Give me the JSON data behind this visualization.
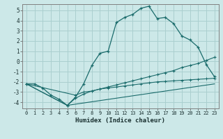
{
  "xlabel": "Humidex (Indice chaleur)",
  "bg_color": "#cce8e8",
  "grid_color": "#aacfcf",
  "line_color": "#1a6b6b",
  "xlim": [
    -0.5,
    23.5
  ],
  "ylim": [
    -4.6,
    5.6
  ],
  "xticks": [
    0,
    1,
    2,
    3,
    4,
    5,
    6,
    7,
    8,
    9,
    10,
    11,
    12,
    13,
    14,
    15,
    16,
    17,
    18,
    19,
    20,
    21,
    22,
    23
  ],
  "yticks": [
    -4,
    -3,
    -2,
    -1,
    0,
    1,
    2,
    3,
    4,
    5
  ],
  "line1_x": [
    0,
    1,
    2,
    3,
    4,
    5,
    6,
    7,
    8,
    9,
    10,
    11,
    12,
    13,
    14,
    15,
    16,
    17,
    18,
    19,
    20,
    21,
    22,
    23
  ],
  "line1_y": [
    -2.2,
    -2.2,
    -2.6,
    -3.3,
    -3.7,
    -4.3,
    -3.5,
    -2.2,
    -0.4,
    0.8,
    1.0,
    3.8,
    4.3,
    4.6,
    5.2,
    5.4,
    4.2,
    4.3,
    3.7,
    2.5,
    2.1,
    1.4,
    -0.3,
    -1.5
  ],
  "line2_x": [
    0,
    5,
    6,
    7,
    8,
    9,
    10,
    11,
    12,
    13,
    14,
    15,
    16,
    17,
    18,
    19,
    20,
    21,
    22,
    23
  ],
  "line2_y": [
    -2.2,
    -4.3,
    -3.6,
    -3.2,
    -2.9,
    -2.7,
    -2.5,
    -2.3,
    -2.1,
    -1.9,
    -1.7,
    -1.5,
    -1.3,
    -1.1,
    -0.9,
    -0.6,
    -0.4,
    -0.2,
    0.1,
    0.4
  ],
  "line3_x": [
    0,
    5,
    23
  ],
  "line3_y": [
    -2.2,
    -4.3,
    -2.2
  ],
  "line4_x": [
    0,
    6,
    7,
    8,
    9,
    10,
    11,
    12,
    13,
    14,
    15,
    16,
    17,
    18,
    19,
    20,
    21,
    22,
    23
  ],
  "line4_y": [
    -2.2,
    -3.3,
    -3.0,
    -2.9,
    -2.7,
    -2.6,
    -2.5,
    -2.4,
    -2.3,
    -2.2,
    -2.1,
    -2.0,
    -1.95,
    -1.9,
    -1.85,
    -1.8,
    -1.75,
    -1.7,
    -1.65
  ]
}
